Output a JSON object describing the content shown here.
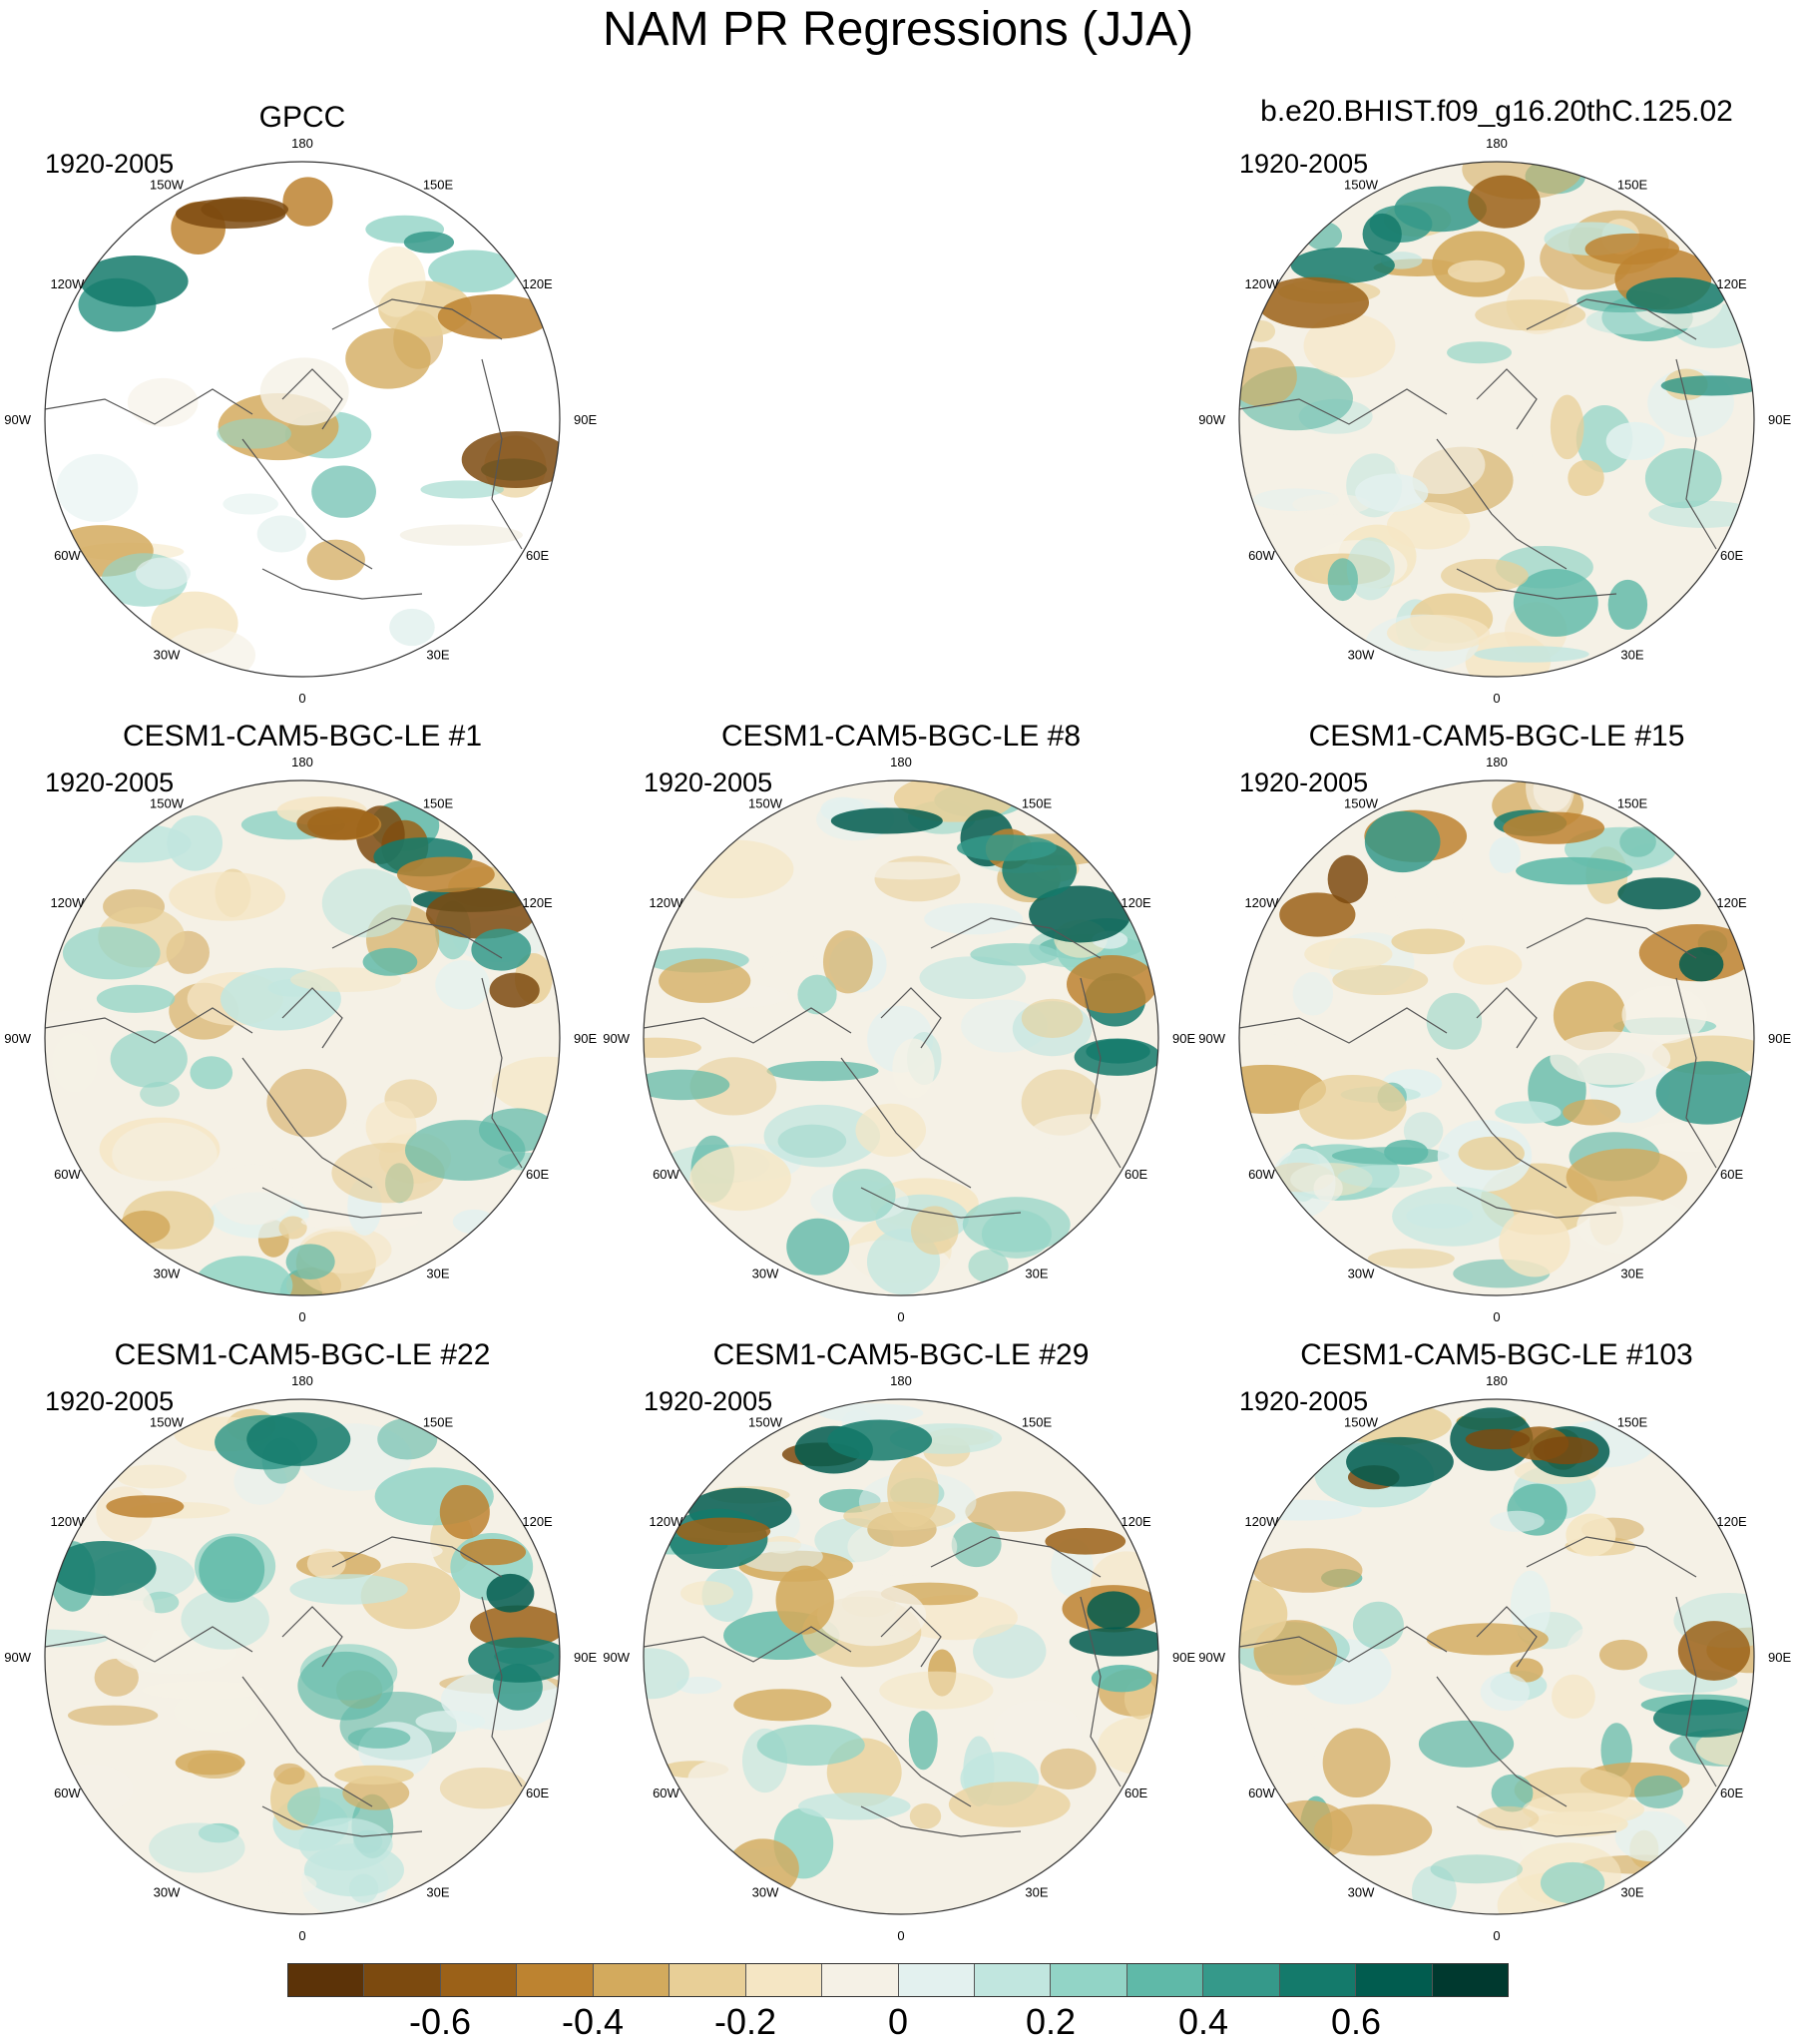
{
  "title": "NAM PR Regressions (JJA)",
  "panels": [
    {
      "id": "gpcc",
      "title": "GPCC",
      "period": "1920-2005",
      "style": "obs"
    },
    {
      "id": "bhist",
      "title": "b.e20.BHIST.f09_g16.20thC.125.02",
      "period": "1920-2005",
      "style": "model"
    },
    {
      "id": "le1",
      "title": "CESM1-CAM5-BGC-LE #1",
      "period": "1920-2005",
      "style": "model"
    },
    {
      "id": "le8",
      "title": "CESM1-CAM5-BGC-LE #8",
      "period": "1920-2005",
      "style": "model"
    },
    {
      "id": "le15",
      "title": "CESM1-CAM5-BGC-LE #15",
      "period": "1920-2005",
      "style": "model"
    },
    {
      "id": "le22",
      "title": "CESM1-CAM5-BGC-LE #22",
      "period": "1920-2005",
      "style": "model"
    },
    {
      "id": "le29",
      "title": "CESM1-CAM5-BGC-LE #29",
      "period": "1920-2005",
      "style": "model"
    },
    {
      "id": "le103",
      "title": "CESM1-CAM5-BGC-LE #103",
      "period": "1920-2005",
      "style": "model"
    }
  ],
  "longitude_labels": [
    {
      "text": "180",
      "lon": 180
    },
    {
      "text": "150E",
      "lon": 150
    },
    {
      "text": "120E",
      "lon": 120
    },
    {
      "text": "90E",
      "lon": 90
    },
    {
      "text": "60E",
      "lon": 60
    },
    {
      "text": "30E",
      "lon": 30
    },
    {
      "text": "0",
      "lon": 0
    },
    {
      "text": "30W",
      "lon": -30
    },
    {
      "text": "60W",
      "lon": -60
    },
    {
      "text": "90W",
      "lon": -90
    },
    {
      "text": "120W",
      "lon": -120
    },
    {
      "text": "150W",
      "lon": -150
    }
  ],
  "colorbar": {
    "colors": [
      "#5c3308",
      "#7c4a0f",
      "#9b6118",
      "#bd8330",
      "#d3aa5d",
      "#e8cf97",
      "#f5e6c4",
      "#f5f1e6",
      "#e3f1ef",
      "#c1e6df",
      "#92d4c6",
      "#5fb9a8",
      "#35998a",
      "#147a6b",
      "#015c4f",
      "#00392f"
    ],
    "tick_labels": [
      "-0.6",
      "-0.4",
      "-0.2",
      "0",
      "0.2",
      "0.4",
      "0.6"
    ],
    "tick_positions": [
      2,
      4,
      6,
      8,
      10,
      12,
      14
    ]
  }
}
